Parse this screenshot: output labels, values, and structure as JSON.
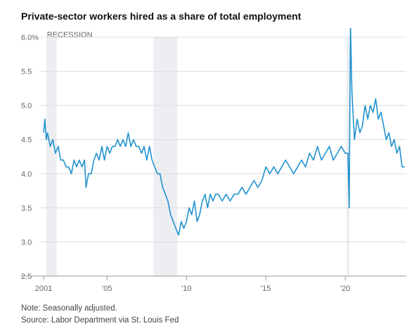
{
  "chart_data": {
    "type": "line",
    "title": "Private-sector workers hired as a share of total employment",
    "note": "Note: Seasonally adjusted.",
    "source": "Source: Labor Department via St. Louis Fed",
    "annotation": "RECESSION",
    "color": "#2192cf",
    "recession_color": "#eceef1",
    "grid": true,
    "xlim": [
      2001,
      2023.8
    ],
    "xticks": [
      {
        "value": 2001,
        "label": "2001"
      },
      {
        "value": 2005,
        "label": "'05"
      },
      {
        "value": 2010,
        "label": "'10"
      },
      {
        "value": 2015,
        "label": "'15"
      },
      {
        "value": 2020,
        "label": "'20"
      }
    ],
    "ylim": [
      2.5,
      6.0
    ],
    "yticks": [
      2.5,
      {
        "value": 3,
        "label": "3.0"
      },
      3.5,
      {
        "value": 4,
        "label": "4.0"
      },
      4.5,
      {
        "value": 5,
        "label": "5.0"
      },
      5.5,
      {
        "value": 6,
        "label": "6.0%"
      }
    ],
    "recessions": [
      [
        2001.17,
        2001.83
      ],
      [
        2007.92,
        2009.42
      ],
      [
        2020.08,
        2020.25
      ]
    ],
    "x": [
      2001.0,
      2001.08,
      2001.17,
      2001.25,
      2001.42,
      2001.58,
      2001.75,
      2001.92,
      2002.08,
      2002.25,
      2002.42,
      2002.58,
      2002.75,
      2002.92,
      2003.08,
      2003.25,
      2003.42,
      2003.58,
      2003.67,
      2003.83,
      2004.0,
      2004.17,
      2004.33,
      2004.5,
      2004.67,
      2004.83,
      2005.0,
      2005.17,
      2005.33,
      2005.5,
      2005.67,
      2005.83,
      2006.0,
      2006.17,
      2006.33,
      2006.5,
      2006.67,
      2006.83,
      2007.0,
      2007.17,
      2007.33,
      2007.5,
      2007.67,
      2007.83,
      2008.0,
      2008.17,
      2008.33,
      2008.5,
      2008.67,
      2008.83,
      2009.0,
      2009.17,
      2009.33,
      2009.5,
      2009.67,
      2009.83,
      2010.0,
      2010.17,
      2010.33,
      2010.5,
      2010.67,
      2010.83,
      2011.0,
      2011.17,
      2011.33,
      2011.5,
      2011.67,
      2011.83,
      2012.0,
      2012.25,
      2012.5,
      2012.75,
      2013.0,
      2013.25,
      2013.5,
      2013.75,
      2014.0,
      2014.25,
      2014.5,
      2014.75,
      2015.0,
      2015.25,
      2015.5,
      2015.75,
      2016.0,
      2016.25,
      2016.5,
      2016.75,
      2017.0,
      2017.25,
      2017.5,
      2017.75,
      2018.0,
      2018.25,
      2018.5,
      2018.75,
      2019.0,
      2019.25,
      2019.5,
      2019.75,
      2020.0,
      2020.17,
      2020.25,
      2020.33,
      2020.42,
      2020.58,
      2020.75,
      2020.92,
      2021.08,
      2021.25,
      2021.42,
      2021.58,
      2021.75,
      2021.92,
      2022.08,
      2022.25,
      2022.42,
      2022.58,
      2022.75,
      2022.92,
      2023.08,
      2023.25,
      2023.42,
      2023.58,
      2023.75
    ],
    "values": [
      4.6,
      4.8,
      4.5,
      4.6,
      4.4,
      4.5,
      4.3,
      4.4,
      4.2,
      4.2,
      4.1,
      4.1,
      4.0,
      4.2,
      4.1,
      4.2,
      4.1,
      4.2,
      3.8,
      4.0,
      4.0,
      4.2,
      4.3,
      4.2,
      4.4,
      4.2,
      4.4,
      4.3,
      4.4,
      4.4,
      4.5,
      4.4,
      4.5,
      4.4,
      4.6,
      4.4,
      4.5,
      4.4,
      4.4,
      4.3,
      4.4,
      4.2,
      4.4,
      4.2,
      4.1,
      4.0,
      4.0,
      3.8,
      3.7,
      3.6,
      3.4,
      3.3,
      3.2,
      3.1,
      3.3,
      3.2,
      3.3,
      3.5,
      3.4,
      3.6,
      3.3,
      3.4,
      3.6,
      3.7,
      3.5,
      3.7,
      3.6,
      3.7,
      3.7,
      3.6,
      3.7,
      3.6,
      3.7,
      3.7,
      3.8,
      3.7,
      3.8,
      3.9,
      3.8,
      3.9,
      4.1,
      4.0,
      4.1,
      4.0,
      4.1,
      4.2,
      4.1,
      4.0,
      4.1,
      4.2,
      4.1,
      4.3,
      4.2,
      4.4,
      4.2,
      4.3,
      4.4,
      4.2,
      4.3,
      4.4,
      4.3,
      4.3,
      3.5,
      6.2,
      5.2,
      4.5,
      4.8,
      4.6,
      4.7,
      5.0,
      4.8,
      5.0,
      4.9,
      5.1,
      4.8,
      4.9,
      4.7,
      4.5,
      4.6,
      4.4,
      4.5,
      4.3,
      4.4,
      4.1,
      4.1
    ]
  }
}
